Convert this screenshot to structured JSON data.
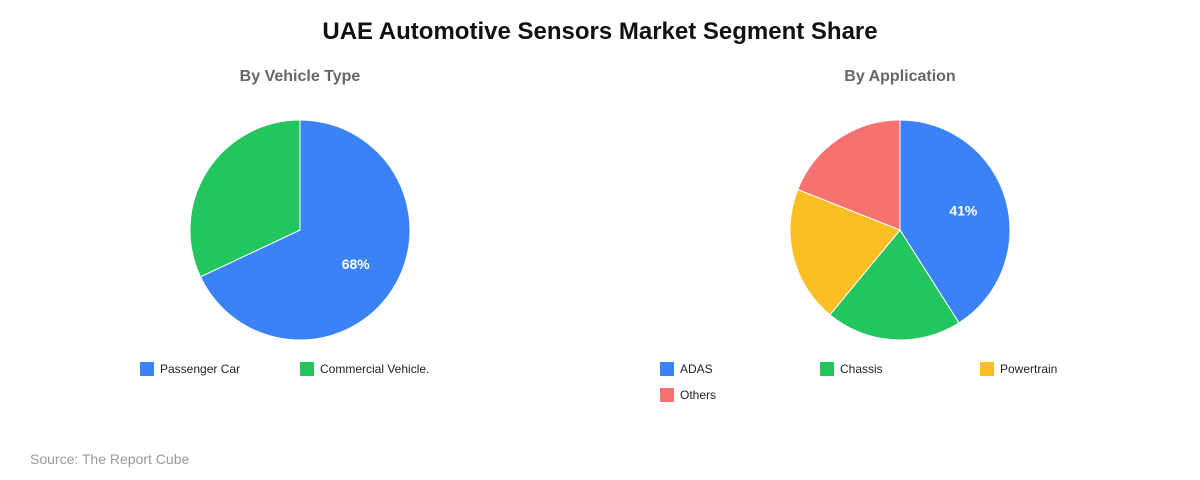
{
  "title": "UAE Automotive Sensors Market Segment Share",
  "source": "Source: The Report Cube",
  "colors": {
    "blue": "#3B82F6",
    "green": "#22C55E",
    "yellow": "#FBBF24",
    "red": "#F87171"
  },
  "chart_data": [
    {
      "type": "pie",
      "title": "By Vehicle Type",
      "categories": [
        "Passenger Car",
        "Commercial Vehicle."
      ],
      "values": [
        68,
        32
      ],
      "unit": "%",
      "colors": [
        "#3B82F6",
        "#22C55E"
      ],
      "data_labels": [
        "68%",
        ""
      ],
      "legend_position": "bottom"
    },
    {
      "type": "pie",
      "title": "By Application",
      "categories": [
        "ADAS",
        "Chassis",
        "Powertrain",
        "Others"
      ],
      "values": [
        41,
        20,
        20,
        19
      ],
      "unit": "%",
      "colors": [
        "#3B82F6",
        "#22C55E",
        "#FBBF24",
        "#F87171"
      ],
      "data_labels": [
        "41%",
        "",
        "",
        ""
      ],
      "legend_position": "bottom"
    }
  ]
}
